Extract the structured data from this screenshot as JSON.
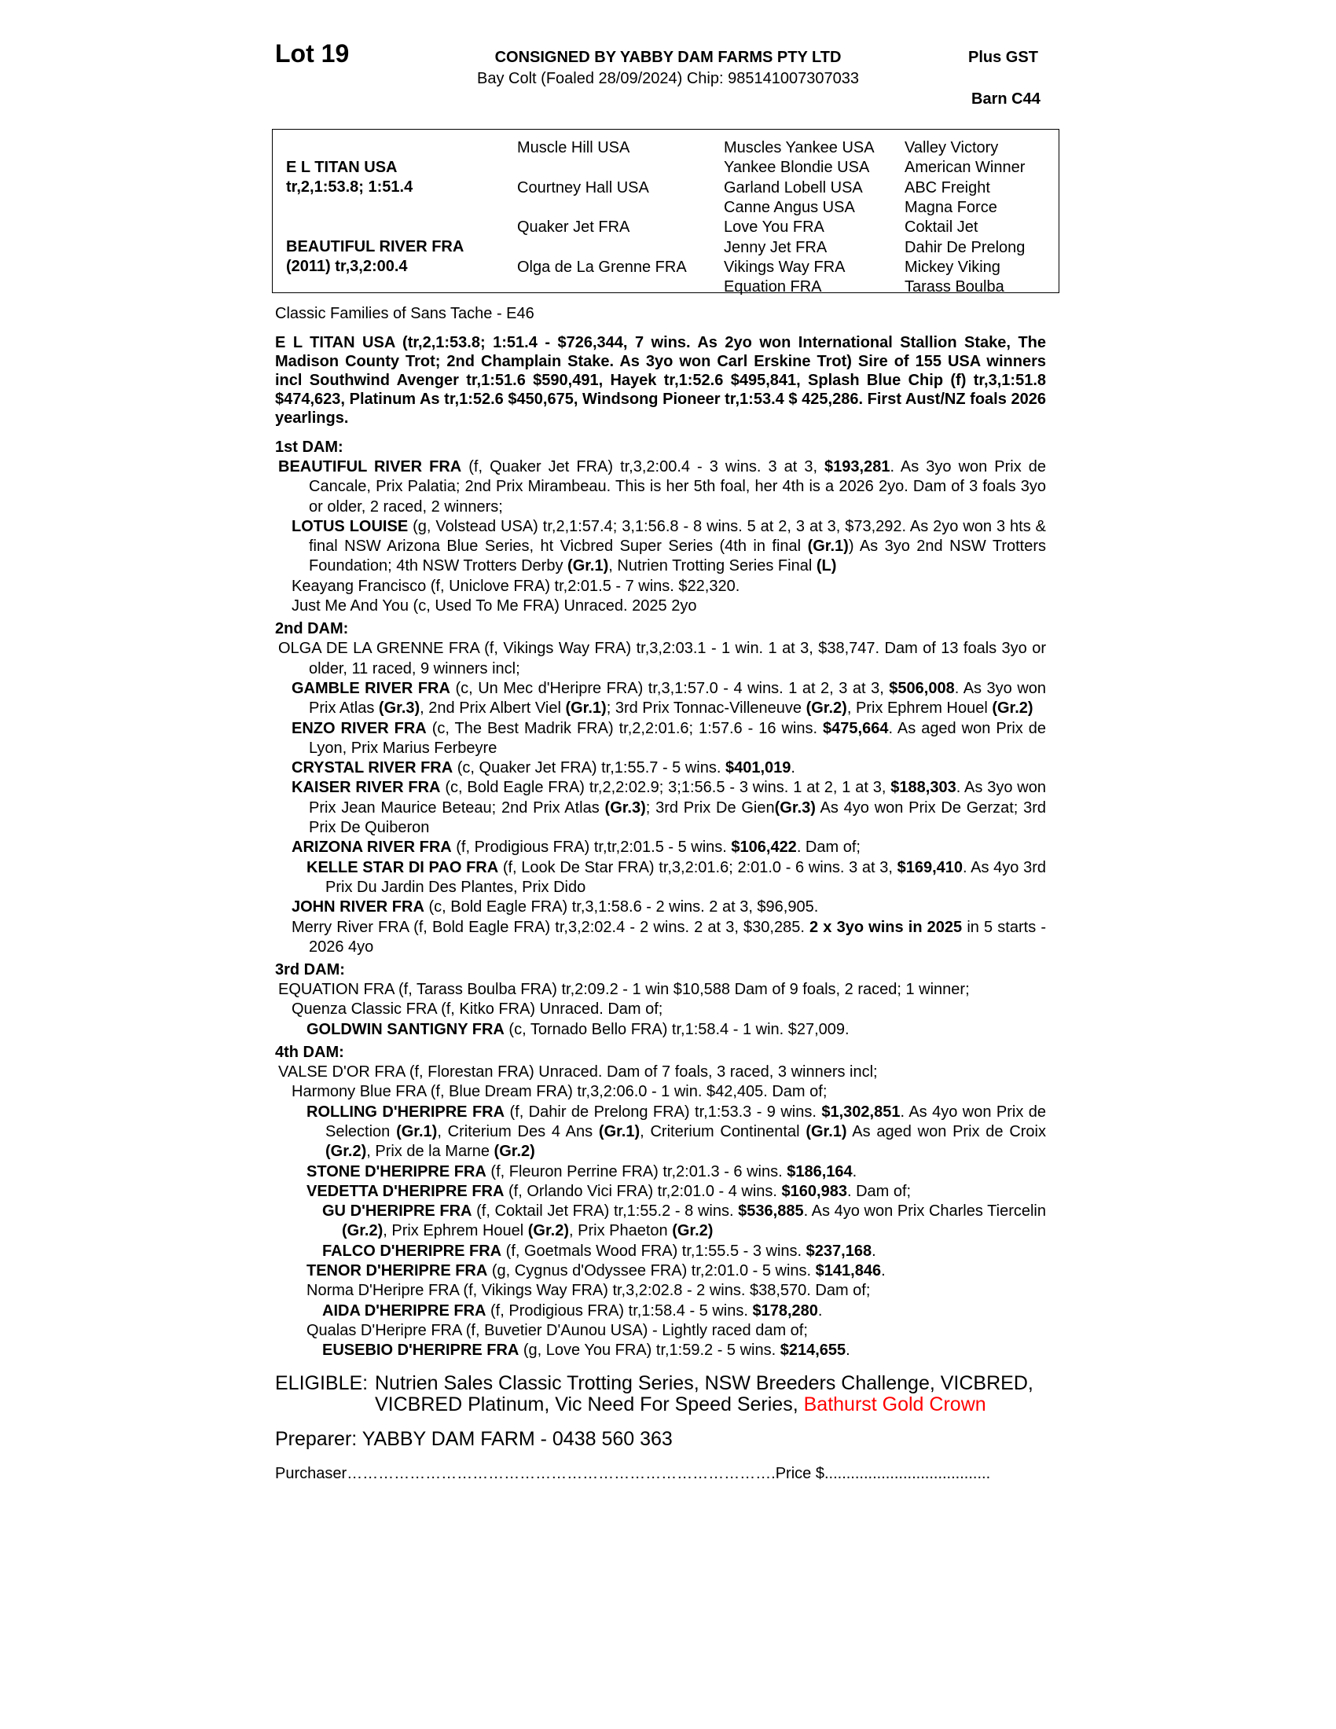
{
  "header": {
    "lot": "Lot 19",
    "consigned": "CONSIGNED BY YABBY DAM FARMS PTY LTD",
    "description": "Bay Colt (Foaled 28/09/2024) Chip: 985141007307033",
    "gst": "Plus GST",
    "barn": "Barn C44"
  },
  "pedigree": {
    "sire": "E L TITAN USA",
    "sire_record": "tr,2,1:53.8; 1:51.4",
    "dam": "BEAUTIFUL RIVER FRA",
    "dam_record": "(2011) tr,3,2:00.4",
    "gen2": [
      "Muscle Hill USA",
      "Courtney Hall USA",
      "Quaker Jet FRA",
      "Olga de La Grenne FRA"
    ],
    "gen3": [
      "Muscles Yankee USA",
      "Yankee Blondie USA",
      "Garland Lobell USA",
      "Canne Angus USA",
      "Love You FRA",
      "Jenny Jet FRA",
      "Vikings Way FRA",
      "Equation FRA"
    ],
    "gen4": [
      "Valley Victory",
      "American Winner",
      "ABC Freight",
      "Magna Force",
      "Coktail Jet",
      "Dahir De Prelong",
      "Mickey Viking",
      "Tarass Boulba"
    ]
  },
  "families": "Classic Families of Sans Tache - E46",
  "sire_text": "E L TITAN USA (tr,2,1:53.8; 1:51.4 - $726,344, 7 wins. As 2yo won International Stallion Stake, The Madison County Trot; 2nd Champlain Stake. As 3yo won Carl Erskine Trot) Sire of 155 USA winners incl Southwind Avenger tr,1:51.6 $590,491, Hayek tr,1:52.6 $495,841, Splash Blue Chip (f) tr,3,1:51.8 $474,623, Platinum As tr,1:52.6 $450,675, Windsong Pioneer tr,1:53.4 $ 425,286. First Aust/NZ foals 2026 yearlings.",
  "dams": [
    {
      "heading": "1st DAM:",
      "entries": [
        {
          "level": 0,
          "segments": [
            [
              "BEAUTIFUL RIVER FRA",
              1
            ],
            [
              " (f, Quaker Jet FRA) tr,3,2:00.4 - 3 wins. 3 at 3, ",
              0
            ],
            [
              "$193,281",
              1
            ],
            [
              ". As 3yo won Prix de Cancale, Prix Palatia; 2nd Prix Mirambeau. This is her 5th foal, her 4th is a 2026 2yo. Dam of 3 foals 3yo or older, 2 raced, 2 winners;",
              0
            ]
          ]
        },
        {
          "level": 1,
          "segments": [
            [
              "LOTUS LOUISE",
              1
            ],
            [
              " (g, Volstead USA) tr,2,1:57.4; 3,1:56.8 - 8 wins. 5 at 2, 3 at 3, $73,292. As 2yo won 3 hts & final NSW Arizona Blue Series, ht Vicbred Super Series (4th in final ",
              0
            ],
            [
              "(Gr.1)",
              1
            ],
            [
              ") As 3yo 2nd NSW Trotters Foundation; 4th NSW Trotters Derby ",
              0
            ],
            [
              "(Gr.1)",
              1
            ],
            [
              ", Nutrien Trotting Series Final ",
              0
            ],
            [
              "(L)",
              1
            ]
          ]
        },
        {
          "level": 1,
          "segments": [
            [
              "Keayang Francisco (f, Uniclove FRA) tr,2:01.5 - 7 wins. $22,320.",
              0
            ]
          ]
        },
        {
          "level": 1,
          "segments": [
            [
              "Just Me And You (c, Used To Me FRA) Unraced. 2025 2yo",
              0
            ]
          ]
        }
      ]
    },
    {
      "heading": "2nd DAM:",
      "entries": [
        {
          "level": 0,
          "segments": [
            [
              "OLGA DE LA GRENNE FRA (f, Vikings Way FRA) tr,3,2:03.1 - 1 win. 1 at 3, $38,747. Dam of 13 foals 3yo or older, 11 raced, 9 winners incl;",
              0
            ]
          ]
        },
        {
          "level": 1,
          "segments": [
            [
              "GAMBLE RIVER FRA",
              1
            ],
            [
              " (c, Un Mec d'Heripre FRA) tr,3,1:57.0 - 4 wins. 1 at 2, 3 at 3, ",
              0
            ],
            [
              "$506,008",
              1
            ],
            [
              ". As 3yo won Prix Atlas ",
              0
            ],
            [
              "(Gr.3)",
              1
            ],
            [
              ", 2nd Prix Albert Viel ",
              0
            ],
            [
              "(Gr.1)",
              1
            ],
            [
              "; 3rd Prix Tonnac-Villeneuve ",
              0
            ],
            [
              "(Gr.2)",
              1
            ],
            [
              ", Prix Ephrem Houel ",
              0
            ],
            [
              "(Gr.2)",
              1
            ]
          ]
        },
        {
          "level": 1,
          "segments": [
            [
              "ENZO RIVER FRA",
              1
            ],
            [
              " (c, The Best Madrik FRA) tr,2,2:01.6; 1:57.6 - 16 wins. ",
              0
            ],
            [
              "$475,664",
              1
            ],
            [
              ". As aged won Prix de Lyon, Prix Marius Ferbeyre",
              0
            ]
          ]
        },
        {
          "level": 1,
          "segments": [
            [
              "CRYSTAL RIVER FRA",
              1
            ],
            [
              " (c, Quaker Jet FRA) tr,1:55.7 - 5 wins. ",
              0
            ],
            [
              "$401,019",
              1
            ],
            [
              ".",
              0
            ]
          ]
        },
        {
          "level": 1,
          "segments": [
            [
              "KAISER RIVER FRA",
              1
            ],
            [
              " (c, Bold Eagle FRA) tr,2,2:02.9; 3;1:56.5 - 3 wins. 1 at 2, 1 at 3, ",
              0
            ],
            [
              "$188,303",
              1
            ],
            [
              ". As 3yo won Prix Jean Maurice Beteau; 2nd Prix Atlas ",
              0
            ],
            [
              "(Gr.3)",
              1
            ],
            [
              "; 3rd Prix De Gien",
              0
            ],
            [
              "(Gr.3)",
              1
            ],
            [
              " As 4yo won Prix De Gerzat; 3rd Prix De Quiberon",
              0
            ]
          ]
        },
        {
          "level": 1,
          "segments": [
            [
              "ARIZONA RIVER FRA",
              1
            ],
            [
              " (f, Prodigious FRA) tr,tr,2:01.5 - 5 wins. ",
              0
            ],
            [
              "$106,422",
              1
            ],
            [
              ". Dam of;",
              0
            ]
          ]
        },
        {
          "level": 2,
          "segments": [
            [
              "KELLE STAR DI PAO FRA",
              1
            ],
            [
              " (f, Look De Star FRA) tr,3,2:01.6; 2:01.0 - 6 wins. 3 at 3, ",
              0
            ],
            [
              "$169,410",
              1
            ],
            [
              ". As 4yo 3rd Prix Du Jardin Des Plantes, Prix Dido",
              0
            ]
          ]
        },
        {
          "level": 1,
          "segments": [
            [
              "JOHN RIVER FRA",
              1
            ],
            [
              " (c, Bold Eagle FRA) tr,3,1:58.6 - 2 wins. 2 at 3, $96,905.",
              0
            ]
          ]
        },
        {
          "level": 1,
          "segments": [
            [
              "Merry River FRA (f, Bold Eagle FRA) tr,3,2:02.4 - 2 wins. 2 at 3, $30,285. ",
              0
            ],
            [
              "2 x 3yo wins in 2025",
              1
            ],
            [
              " in 5 starts - 2026 4yo",
              0
            ]
          ]
        }
      ]
    },
    {
      "heading": "3rd DAM:",
      "entries": [
        {
          "level": 0,
          "segments": [
            [
              "EQUATION FRA (f, Tarass Boulba FRA) tr,2:09.2 - 1 win $10,588 Dam of 9 foals, 2 raced; 1 winner;",
              0
            ]
          ]
        },
        {
          "level": 1,
          "segments": [
            [
              "Quenza Classic FRA (f, Kitko FRA) Unraced. Dam of;",
              0
            ]
          ]
        },
        {
          "level": 2,
          "segments": [
            [
              "GOLDWIN SANTIGNY FRA",
              1
            ],
            [
              " (c, Tornado Bello FRA) tr,1:58.4 - 1 win. $27,009.",
              0
            ]
          ]
        }
      ]
    },
    {
      "heading": "4th DAM:",
      "entries": [
        {
          "level": 0,
          "segments": [
            [
              "VALSE D'OR FRA (f, Florestan FRA) Unraced. Dam of 7 foals, 3 raced, 3 winners incl;",
              0
            ]
          ]
        },
        {
          "level": 1,
          "segments": [
            [
              "Harmony Blue FRA (f, Blue Dream FRA) tr,3,2:06.0 - 1 win. $42,405. Dam of;",
              0
            ]
          ]
        },
        {
          "level": 2,
          "segments": [
            [
              "ROLLING D'HERIPRE FRA",
              1
            ],
            [
              " (f, Dahir de Prelong FRA) tr,1:53.3 - 9 wins. ",
              0
            ],
            [
              "$1,302,851",
              1
            ],
            [
              ". As 4yo won Prix de Selection ",
              0
            ],
            [
              "(Gr.1)",
              1
            ],
            [
              ", Criterium Des 4 Ans ",
              0
            ],
            [
              "(Gr.1)",
              1
            ],
            [
              ", Criterium Continental ",
              0
            ],
            [
              "(Gr.1)",
              1
            ],
            [
              " As aged won Prix de Croix ",
              0
            ],
            [
              "(Gr.2)",
              1
            ],
            [
              ", Prix de la Marne ",
              0
            ],
            [
              "(Gr.2)",
              1
            ]
          ]
        },
        {
          "level": 2,
          "segments": [
            [
              "STONE D'HERIPRE FRA",
              1
            ],
            [
              " (f, Fleuron Perrine FRA) tr,2:01.3 - 6 wins. ",
              0
            ],
            [
              "$186,164",
              1
            ],
            [
              ".",
              0
            ]
          ]
        },
        {
          "level": 2,
          "segments": [
            [
              "VEDETTA D'HERIPRE FRA",
              1
            ],
            [
              " (f, Orlando Vici FRA) tr,2:01.0 - 4 wins. ",
              0
            ],
            [
              "$160,983",
              1
            ],
            [
              ". Dam of;",
              0
            ]
          ]
        },
        {
          "level": 3,
          "segments": [
            [
              "GU D'HERIPRE FRA",
              1
            ],
            [
              " (f, Coktail Jet FRA) tr,1:55.2 - 8 wins. ",
              0
            ],
            [
              "$536,885",
              1
            ],
            [
              ". As 4yo won Prix Charles Tiercelin ",
              0
            ],
            [
              "(Gr.2)",
              1
            ],
            [
              ", Prix Ephrem Houel ",
              0
            ],
            [
              "(Gr.2)",
              1
            ],
            [
              ", Prix Phaeton ",
              0
            ],
            [
              "(Gr.2)",
              1
            ]
          ]
        },
        {
          "level": 3,
          "segments": [
            [
              "FALCO D'HERIPRE FRA",
              1
            ],
            [
              " (f, Goetmals Wood FRA) tr,1:55.5 - 3 wins. ",
              0
            ],
            [
              "$237,168",
              1
            ],
            [
              ".",
              0
            ]
          ]
        },
        {
          "level": 2,
          "segments": [
            [
              "TENOR D'HERIPRE FRA",
              1
            ],
            [
              " (g, Cygnus d'Odyssee FRA) tr,2:01.0 - 5 wins. ",
              0
            ],
            [
              "$141,846",
              1
            ],
            [
              ".",
              0
            ]
          ]
        },
        {
          "level": 2,
          "segments": [
            [
              "Norma D'Heripre FRA (f, Vikings Way FRA) tr,3,2:02.8 - 2 wins. $38,570. Dam of;",
              0
            ]
          ]
        },
        {
          "level": 3,
          "segments": [
            [
              "AIDA D'HERIPRE FRA",
              1
            ],
            [
              " (f, Prodigious FRA) tr,1:58.4 - 5 wins. ",
              0
            ],
            [
              "$178,280",
              1
            ],
            [
              ".",
              0
            ]
          ]
        },
        {
          "level": 2,
          "segments": [
            [
              "Qualas D'Heripre FRA (f, Buvetier D'Aunou USA) - Lightly raced dam of;",
              0
            ]
          ]
        },
        {
          "level": 3,
          "segments": [
            [
              "EUSEBIO D'HERIPRE FRA",
              1
            ],
            [
              " (g, Love You FRA) tr,1:59.2 - 5 wins. ",
              0
            ],
            [
              "$214,655",
              1
            ],
            [
              ".",
              0
            ]
          ]
        }
      ]
    }
  ],
  "eligible": {
    "label": "ELIGIBLE:",
    "text": "Nutrien Sales Classic Trotting Series, NSW Breeders Challenge, VICBRED, VICBRED Platinum, Vic Need For Speed Series, ",
    "highlight": "Bathurst Gold Crown",
    "highlight_color": "#ff0000"
  },
  "preparer": "Preparer:  YABBY DAM FARM - 0438 560 363",
  "purchaser": {
    "label": "Purchaser",
    "dots": "……………………………………………………………………….",
    "price_label": "Price $",
    "price_dots": "......................................"
  }
}
